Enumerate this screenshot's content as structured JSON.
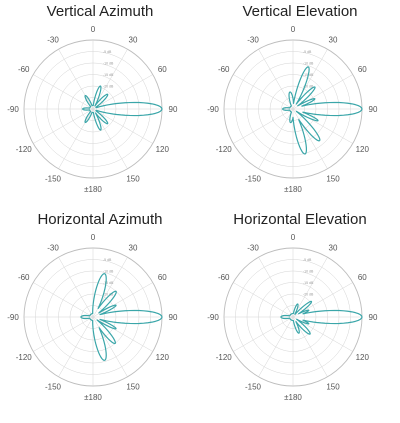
{
  "angle_ticks": {
    "a0": "0",
    "a30": "30",
    "a60": "60",
    "a90": "90",
    "a120": "120",
    "a150": "150",
    "a180": "±180",
    "am30": "-30",
    "am60": "-60",
    "am90": "-90",
    "am120": "-120",
    "am150": "-150"
  },
  "radial_labels": [
    "-5 dB",
    "-10 dB",
    "-15 dB",
    "-20 dB"
  ],
  "colors": {
    "pattern": "#3aa6a9",
    "grid": "#d4d4d4",
    "axis": "#bdbdbd"
  },
  "chart_data": [
    {
      "type": "polar",
      "title": "Vertical Azimuth",
      "angle_unit": "deg",
      "r_range": [
        -40,
        0
      ],
      "lobes": [
        {
          "center": 90,
          "peak": 0,
          "width": 9
        },
        {
          "center": 18,
          "peak": -26,
          "width": 7
        },
        {
          "center": 45,
          "peak": -28,
          "width": 7
        },
        {
          "center": 135,
          "peak": -28,
          "width": 7
        },
        {
          "center": 160,
          "peak": -27,
          "width": 7
        },
        {
          "center": -30,
          "peak": -31,
          "width": 8
        },
        {
          "center": -150,
          "peak": -31,
          "width": 8
        },
        {
          "center": -90,
          "peak": -34,
          "width": 10
        }
      ]
    },
    {
      "type": "polar",
      "title": "Vertical Elevation",
      "angle_unit": "deg",
      "r_range": [
        -40,
        0
      ],
      "lobes": [
        {
          "center": 90,
          "peak": 0,
          "width": 9
        },
        {
          "center": 20,
          "peak": -14,
          "width": 7
        },
        {
          "center": 45,
          "peak": -22,
          "width": 6
        },
        {
          "center": 65,
          "peak": -26,
          "width": 5
        },
        {
          "center": 115,
          "peak": -24,
          "width": 5
        },
        {
          "center": 140,
          "peak": -16,
          "width": 7
        },
        {
          "center": 165,
          "peak": -13,
          "width": 8
        },
        {
          "center": -10,
          "peak": -30,
          "width": 10
        },
        {
          "center": -170,
          "peak": -32,
          "width": 10
        },
        {
          "center": -90,
          "peak": -34,
          "width": 12
        }
      ]
    },
    {
      "type": "polar",
      "title": "Horizontal Azimuth",
      "angle_unit": "deg",
      "r_range": [
        -40,
        0
      ],
      "lobes": [
        {
          "center": 90,
          "peak": 0,
          "width": 9
        },
        {
          "center": 15,
          "peak": -14,
          "width": 9
        },
        {
          "center": 42,
          "peak": -20,
          "width": 7
        },
        {
          "center": 63,
          "peak": -25,
          "width": 5
        },
        {
          "center": 117,
          "peak": -25,
          "width": 5
        },
        {
          "center": 140,
          "peak": -20,
          "width": 7
        },
        {
          "center": 165,
          "peak": -14,
          "width": 9
        },
        {
          "center": -90,
          "peak": -33,
          "width": 12
        }
      ]
    },
    {
      "type": "polar",
      "title": "Horizontal Elevation",
      "angle_unit": "deg",
      "r_range": [
        -40,
        0
      ],
      "lobes": [
        {
          "center": 90,
          "peak": 0,
          "width": 9
        },
        {
          "center": 50,
          "peak": -26,
          "width": 6
        },
        {
          "center": 67,
          "peak": -30,
          "width": 5
        },
        {
          "center": 113,
          "peak": -30,
          "width": 5
        },
        {
          "center": 135,
          "peak": -26,
          "width": 7
        },
        {
          "center": 160,
          "peak": -30,
          "width": 8
        },
        {
          "center": 20,
          "peak": -32,
          "width": 8
        },
        {
          "center": -90,
          "peak": -33,
          "width": 12
        }
      ]
    }
  ]
}
